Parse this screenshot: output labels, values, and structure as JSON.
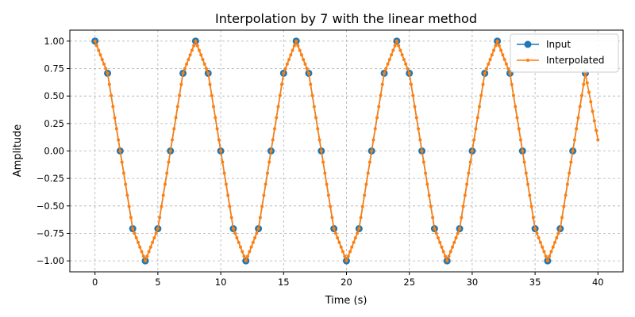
{
  "chart_data": {
    "type": "line",
    "title": "Interpolation by 7 with the linear method",
    "xlabel": "Time (s)",
    "ylabel": "Amplitude",
    "xlim": [
      -2,
      42
    ],
    "ylim": [
      -1.1,
      1.1
    ],
    "xticks": [
      0,
      5,
      10,
      15,
      20,
      25,
      30,
      35,
      40
    ],
    "xtick_labels": [
      "0",
      "5",
      "10",
      "15",
      "20",
      "25",
      "30",
      "35",
      "40"
    ],
    "yticks": [
      1.0,
      0.75,
      0.5,
      0.25,
      0.0,
      -0.25,
      -0.5,
      -0.75,
      -1.0
    ],
    "ytick_labels": [
      "1.00",
      "0.75",
      "0.50",
      "0.25",
      "0.00",
      "−0.25",
      "−0.50",
      "−0.75",
      "−1.00"
    ],
    "grid": true,
    "legend_position": "top-right",
    "series": [
      {
        "name": "Input",
        "color": "#1f77b4",
        "marker": "circle",
        "x": [
          0,
          1,
          2,
          3,
          4,
          5,
          6,
          7,
          8,
          9,
          10,
          11,
          12,
          13,
          14,
          15,
          16,
          17,
          18,
          19,
          20,
          21,
          22,
          23,
          24,
          25,
          26,
          27,
          28,
          29,
          30,
          31,
          32,
          33,
          34,
          35,
          36,
          37,
          38,
          39
        ],
        "y": [
          1.0,
          0.707,
          0.0,
          -0.707,
          -1.0,
          -0.707,
          0.0,
          0.707,
          1.0,
          0.707,
          0.0,
          -0.707,
          -1.0,
          -0.707,
          0.0,
          0.707,
          1.0,
          0.707,
          0.0,
          -0.707,
          -1.0,
          -0.707,
          0.0,
          0.707,
          1.0,
          0.707,
          0.0,
          -0.707,
          -1.0,
          -0.707,
          0.0,
          0.707,
          1.0,
          0.707,
          0.0,
          -0.707,
          -1.0,
          -0.707,
          0.0,
          0.707
        ]
      },
      {
        "name": "Interpolated",
        "color": "#ff7f0e",
        "marker": "small-circle",
        "interpolation_factor": 7,
        "x_end": 40,
        "y_end": 0.101
      }
    ]
  }
}
